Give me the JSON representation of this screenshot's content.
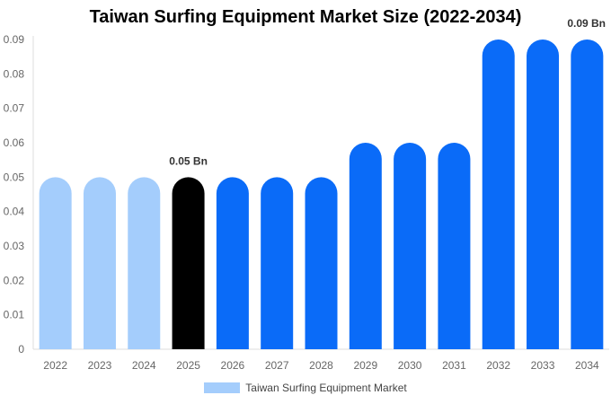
{
  "chart_data": {
    "type": "bar",
    "title": "Taiwan Surfing Equipment Market Size (2022-2034)",
    "categories": [
      "2022",
      "2023",
      "2024",
      "2025",
      "2026",
      "2027",
      "2028",
      "2029",
      "2030",
      "2031",
      "2032",
      "2033",
      "2034"
    ],
    "series": [
      {
        "name": "Taiwan Surfing Equipment Market",
        "values": [
          0.05,
          0.05,
          0.05,
          0.05,
          0.05,
          0.05,
          0.05,
          0.06,
          0.06,
          0.06,
          0.09,
          0.09,
          0.09
        ]
      }
    ],
    "bar_colors": [
      "#a4cdfc",
      "#a4cdfc",
      "#a4cdfc",
      "#000000",
      "#0a6bf8",
      "#0a6bf8",
      "#0a6bf8",
      "#0a6bf8",
      "#0a6bf8",
      "#0a6bf8",
      "#0a6bf8",
      "#0a6bf8",
      "#0a6bf8"
    ],
    "data_labels": [
      {
        "category": "2025",
        "text": "0.05 Bn"
      },
      {
        "category": "2034",
        "text": "0.09 Bn"
      }
    ],
    "ylim": [
      0,
      0.09
    ],
    "yticks": [
      "0",
      "0.01",
      "0.02",
      "0.03",
      "0.04",
      "0.05",
      "0.06",
      "0.07",
      "0.08",
      "0.09"
    ],
    "legend_color": "#a4cdfc",
    "legend_position": "bottom-center",
    "grid": false
  }
}
